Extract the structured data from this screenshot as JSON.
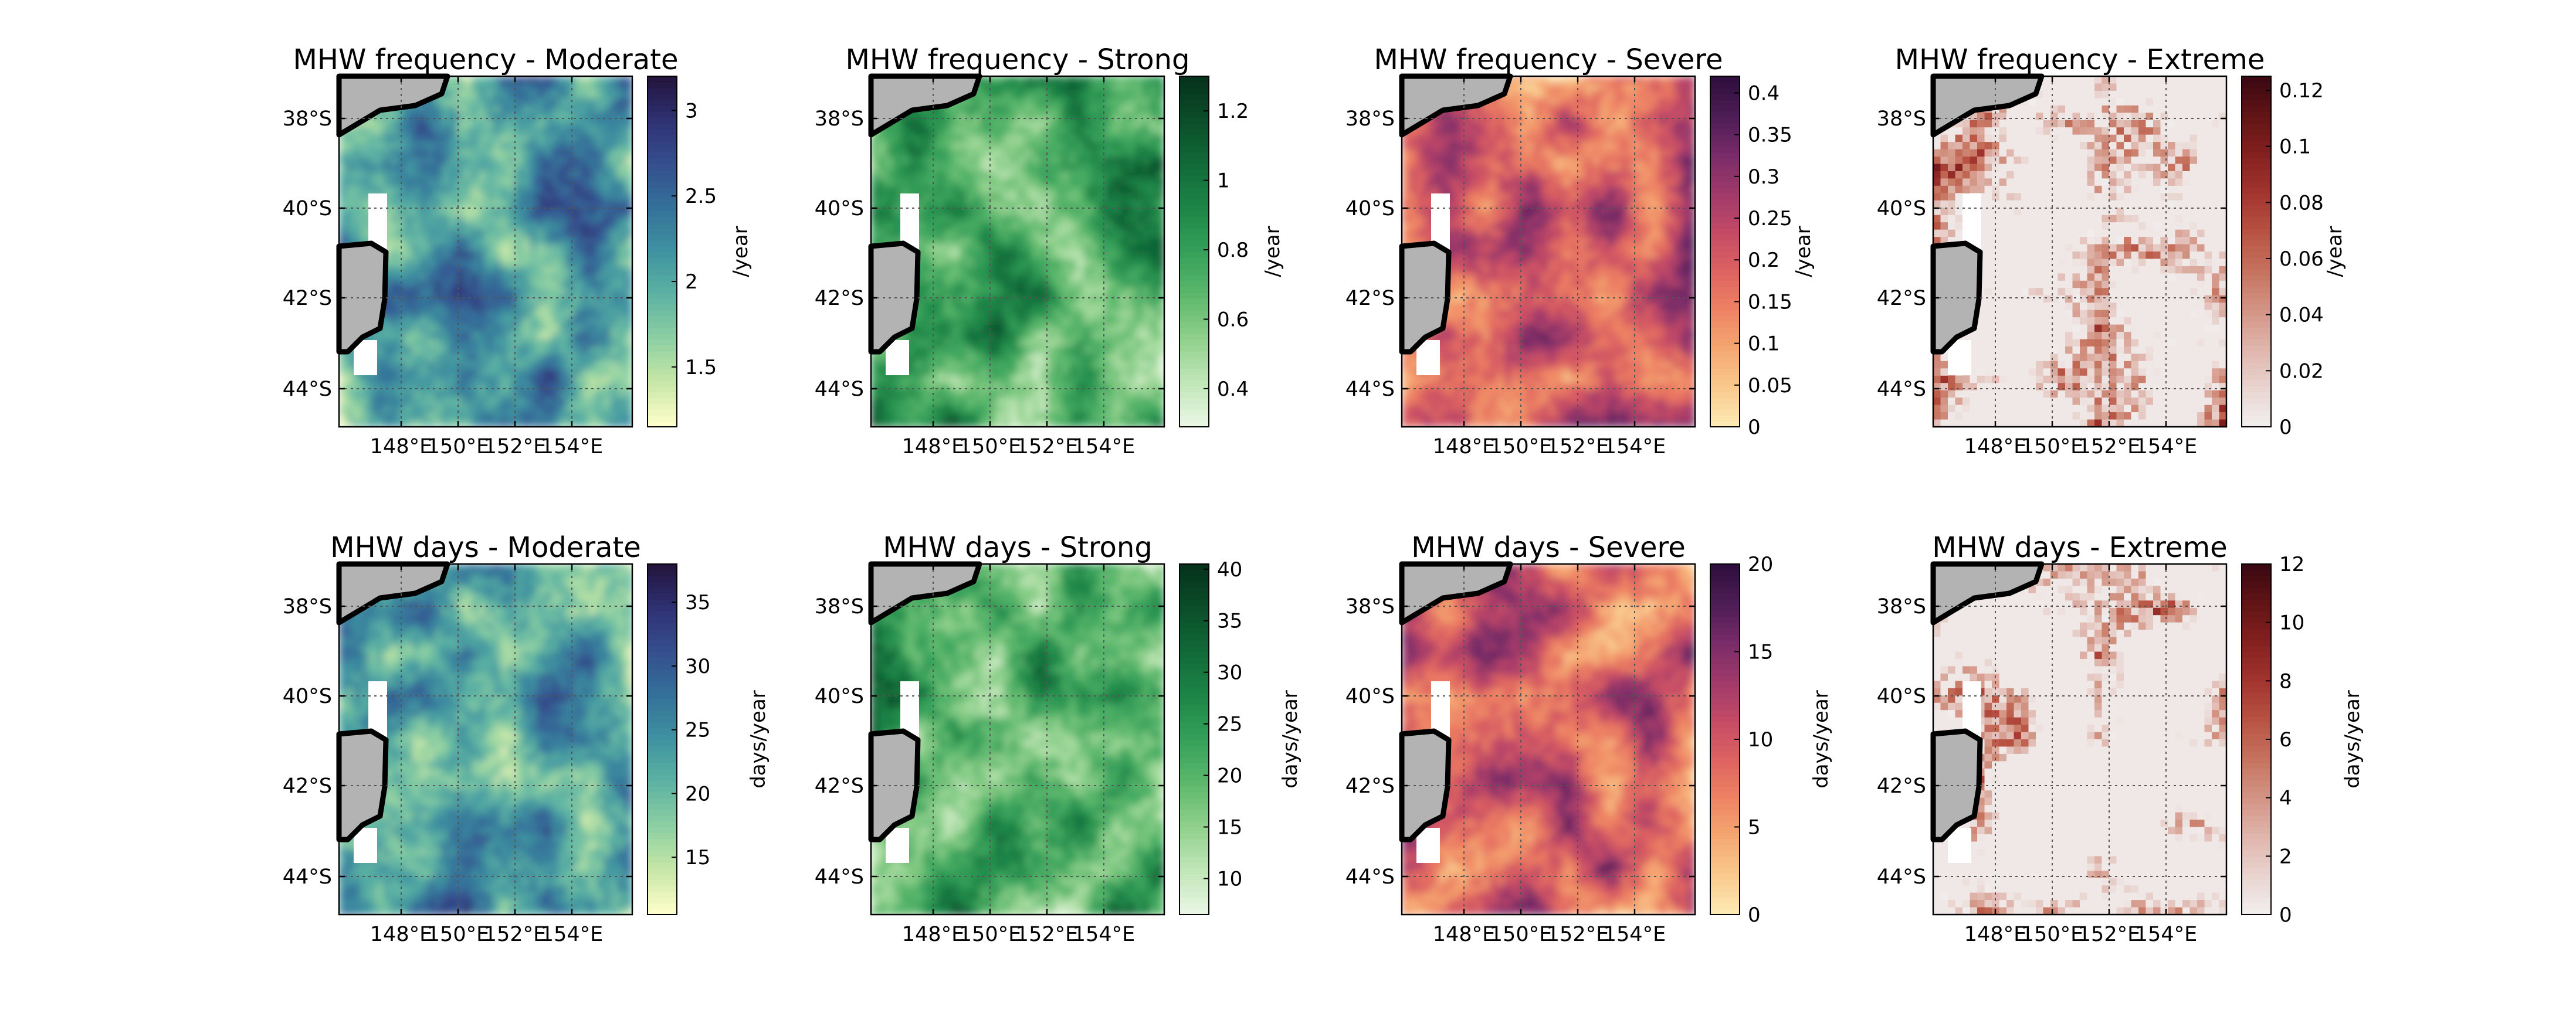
{
  "chart_data": [
    {
      "type": "heatmap",
      "title": "MHW frequency - Moderate",
      "colorbar_label": "/year",
      "colormap": "haline",
      "cticks": [
        "1.5",
        "2",
        "2.5",
        "3"
      ],
      "crange": [
        1.15,
        3.2
      ],
      "ctick_values": [
        1.5,
        2,
        2.5,
        3
      ],
      "xticks": [
        "148°E",
        "150°E",
        "152°E",
        "154°E"
      ],
      "yticks": [
        "38°S",
        "40°S",
        "42°S",
        "44°S"
      ],
      "xlim": [
        147,
        154.9
      ],
      "ylim": [
        -44.9,
        -37.0
      ],
      "grid": true,
      "seed": 11
    },
    {
      "type": "heatmap",
      "title": "MHW frequency - Strong",
      "colorbar_label": "/year",
      "colormap": "greens",
      "cticks": [
        "0.4",
        "0.6",
        "0.8",
        "1",
        "1.2"
      ],
      "crange": [
        0.29,
        1.3
      ],
      "ctick_values": [
        0.4,
        0.6,
        0.8,
        1,
        1.2
      ],
      "xticks": [
        "148°E",
        "150°E",
        "152°E",
        "154°E"
      ],
      "yticks": [
        "38°S",
        "40°S",
        "42°S",
        "44°S"
      ],
      "xlim": [
        147,
        154.9
      ],
      "ylim": [
        -44.9,
        -37.0
      ],
      "grid": true,
      "seed": 23
    },
    {
      "type": "heatmap",
      "title": "MHW frequency - Severe",
      "colorbar_label": "/year",
      "colormap": "matter",
      "cticks": [
        "0",
        "0.05",
        "0.1",
        "0.15",
        "0.2",
        "0.25",
        "0.3",
        "0.35",
        "0.4"
      ],
      "crange": [
        0,
        0.42
      ],
      "ctick_values": [
        0,
        0.05,
        0.1,
        0.15,
        0.2,
        0.25,
        0.3,
        0.35,
        0.4
      ],
      "xticks": [
        "148°E",
        "150°E",
        "152°E",
        "154°E"
      ],
      "yticks": [
        "38°S",
        "40°S",
        "42°S",
        "44°S"
      ],
      "xlim": [
        147,
        154.9
      ],
      "ylim": [
        -44.9,
        -37.0
      ],
      "grid": true,
      "seed": 37
    },
    {
      "type": "heatmap",
      "title": "MHW frequency - Extreme",
      "colorbar_label": "/year",
      "colormap": "amp",
      "cticks": [
        "0",
        "0.02",
        "0.04",
        "0.06",
        "0.08",
        "0.1",
        "0.12"
      ],
      "crange": [
        0,
        0.125
      ],
      "ctick_values": [
        0,
        0.02,
        0.04,
        0.06,
        0.08,
        0.1,
        0.12
      ],
      "xticks": [
        "148°E",
        "150°E",
        "152°E",
        "154°E"
      ],
      "yticks": [
        "38°S",
        "40°S",
        "42°S",
        "44°S"
      ],
      "xlim": [
        147,
        154.9
      ],
      "ylim": [
        -44.9,
        -37.0
      ],
      "grid": true,
      "seed": 41
    },
    {
      "type": "heatmap",
      "title": "MHW days - Moderate",
      "colorbar_label": "days/year",
      "colormap": "haline",
      "cticks": [
        "15",
        "20",
        "25",
        "30",
        "35"
      ],
      "crange": [
        10.5,
        38
      ],
      "ctick_values": [
        15,
        20,
        25,
        30,
        35
      ],
      "xticks": [
        "148°E",
        "150°E",
        "152°E",
        "154°E"
      ],
      "yticks": [
        "38°S",
        "40°S",
        "42°S",
        "44°S"
      ],
      "xlim": [
        147,
        154.9
      ],
      "ylim": [
        -44.9,
        -37.0
      ],
      "grid": true,
      "seed": 53
    },
    {
      "type": "heatmap",
      "title": "MHW days - Strong",
      "colorbar_label": "days/year",
      "colormap": "greens",
      "cticks": [
        "10",
        "15",
        "20",
        "25",
        "30",
        "35",
        "40"
      ],
      "crange": [
        6.5,
        40.5
      ],
      "ctick_values": [
        10,
        15,
        20,
        25,
        30,
        35,
        40
      ],
      "xticks": [
        "148°E",
        "150°E",
        "152°E",
        "154°E"
      ],
      "yticks": [
        "38°S",
        "40°S",
        "42°S",
        "44°S"
      ],
      "xlim": [
        147,
        154.9
      ],
      "ylim": [
        -44.9,
        -37.0
      ],
      "grid": true,
      "seed": 67
    },
    {
      "type": "heatmap",
      "title": "MHW days - Severe",
      "colorbar_label": "days/year",
      "colormap": "matter",
      "cticks": [
        "0",
        "5",
        "10",
        "15",
        "20"
      ],
      "crange": [
        0,
        20
      ],
      "ctick_values": [
        0,
        5,
        10,
        15,
        20
      ],
      "xticks": [
        "148°E",
        "150°E",
        "152°E",
        "154°E"
      ],
      "yticks": [
        "38°S",
        "40°S",
        "42°S",
        "44°S"
      ],
      "xlim": [
        147,
        154.9
      ],
      "ylim": [
        -44.9,
        -37.0
      ],
      "grid": true,
      "seed": 79
    },
    {
      "type": "heatmap",
      "title": "MHW days - Extreme",
      "colorbar_label": "days/year",
      "colormap": "amp",
      "cticks": [
        "0",
        "2",
        "4",
        "6",
        "8",
        "10",
        "12"
      ],
      "crange": [
        0,
        12
      ],
      "ctick_values": [
        0,
        2,
        4,
        6,
        8,
        10,
        12
      ],
      "xticks": [
        "148°E",
        "150°E",
        "152°E",
        "154°E"
      ],
      "yticks": [
        "38°S",
        "40°S",
        "42°S",
        "44°S"
      ],
      "xlim": [
        147,
        154.9
      ],
      "ylim": [
        -44.9,
        -37.0
      ],
      "grid": true,
      "seed": 83
    }
  ],
  "colors": {
    "land": "#b3b3b3",
    "coast": "#000000",
    "grid": "#555555"
  }
}
